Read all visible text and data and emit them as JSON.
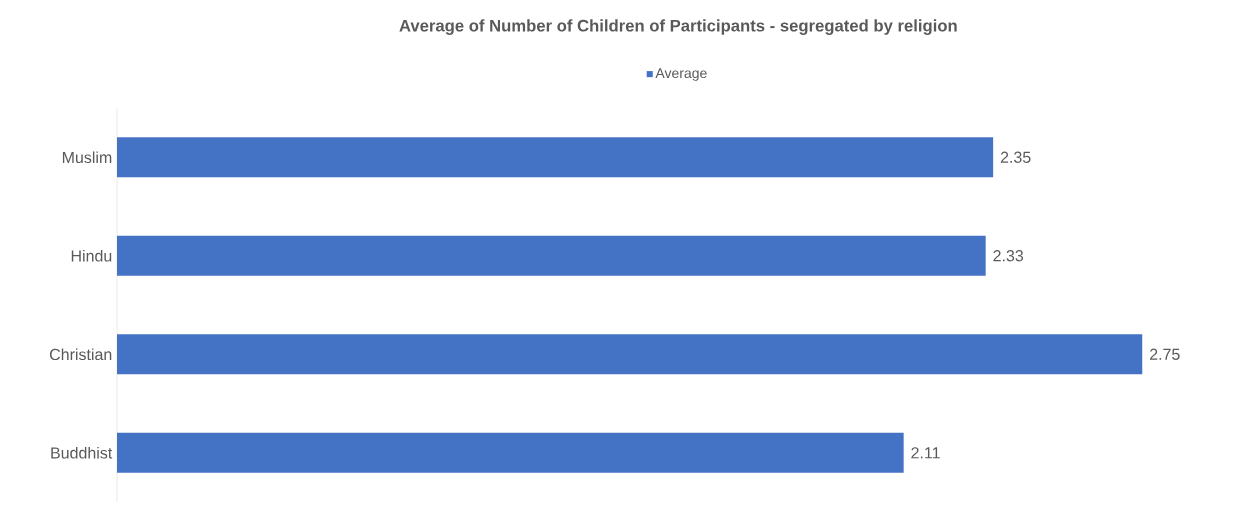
{
  "chart_data": {
    "type": "bar",
    "orientation": "horizontal",
    "title": "Average of Number of Children of Participants - segregated by religion",
    "categories": [
      "Muslim",
      "Hindu",
      "Christian",
      "Buddhist"
    ],
    "series": [
      {
        "name": "Average",
        "color": "#4472c4",
        "values": [
          2.35,
          2.33,
          2.75,
          2.11
        ]
      }
    ],
    "data_labels": true,
    "legend": "top",
    "grid": false
  }
}
